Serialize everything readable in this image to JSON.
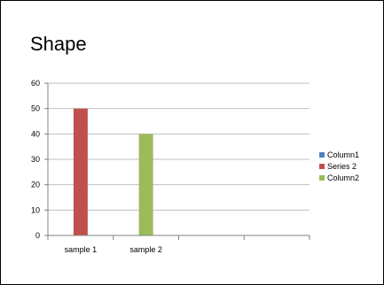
{
  "chart_data": {
    "type": "bar",
    "title": "Shape",
    "categories": [
      "sample 1",
      "sample 2",
      "",
      ""
    ],
    "ylim": [
      0,
      60
    ],
    "yticks": [
      0,
      10,
      20,
      30,
      40,
      50,
      60
    ],
    "grid": true,
    "legend": "right",
    "series": [
      {
        "name": "Column1",
        "color": "#4f81bd",
        "values": [
          null,
          null,
          null,
          null
        ]
      },
      {
        "name": "Series 2",
        "color": "#c0504d",
        "values": [
          50,
          null,
          null,
          null
        ]
      },
      {
        "name": "Column2",
        "color": "#9bbb59",
        "values": [
          null,
          40,
          null,
          null
        ]
      }
    ]
  }
}
